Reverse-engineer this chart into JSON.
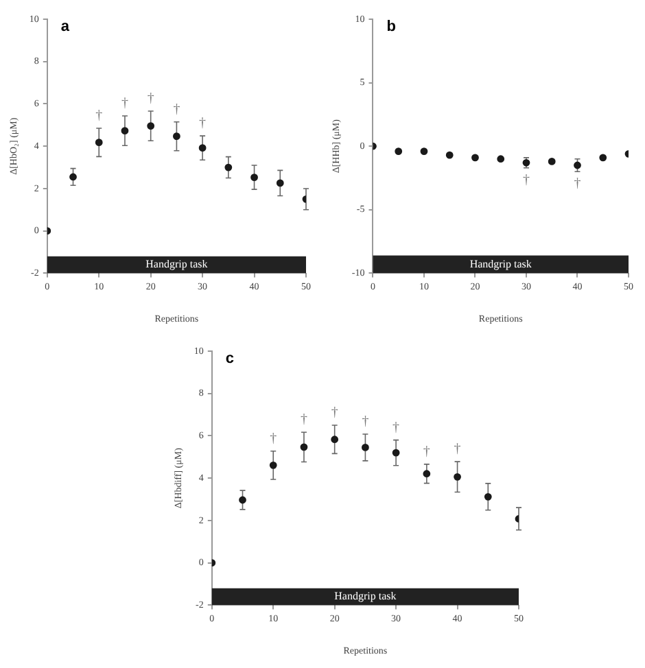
{
  "chart_data": [
    {
      "type": "scatter",
      "title": "a",
      "xlabel": "Repetitions",
      "ylabel": "Δ[HbO₂] (μM)",
      "x": [
        0,
        5,
        10,
        15,
        20,
        25,
        30,
        35,
        40,
        45,
        50
      ],
      "series": [
        {
          "color": "#1a1a1a",
          "values": [
            0,
            2.55,
            4.18,
            4.73,
            4.96,
            4.47,
            3.92,
            3.0,
            2.53,
            2.26,
            1.5
          ],
          "errors": [
            null,
            0.4,
            0.67,
            0.7,
            0.7,
            0.68,
            0.57,
            0.5,
            0.57,
            0.6,
            0.5
          ]
        }
      ],
      "xlim": [
        0,
        50
      ],
      "xticks": [
        0,
        10,
        20,
        30,
        40,
        50
      ],
      "ylim": [
        -2,
        10
      ],
      "yticks": [
        -2,
        0,
        2,
        4,
        6,
        8,
        10
      ],
      "grid": false,
      "legend": false,
      "marker": "circle",
      "bands": [
        {
          "axis": "y",
          "from": -2,
          "to": -1.2,
          "label": "Handgrip task",
          "color": "#222222"
        }
      ],
      "annotations": [
        {
          "text": "†",
          "x": 10,
          "y": 4.18
        },
        {
          "text": "†",
          "x": 15,
          "y": 4.73
        },
        {
          "text": "†",
          "x": 20,
          "y": 4.96
        },
        {
          "text": "†",
          "x": 25,
          "y": 4.47
        },
        {
          "text": "†",
          "x": 30,
          "y": 3.92
        }
      ]
    },
    {
      "type": "scatter",
      "title": "b",
      "xlabel": "Repetitions",
      "ylabel": "Δ[HHb] (μM)",
      "x": [
        0,
        5,
        10,
        15,
        20,
        25,
        30,
        35,
        40,
        45,
        50
      ],
      "series": [
        {
          "color": "#1a1a1a",
          "values": [
            0,
            -0.4,
            -0.4,
            -0.7,
            -0.9,
            -1.0,
            -1.3,
            -1.2,
            -1.5,
            -0.9,
            -0.6
          ],
          "errors": [
            null,
            null,
            null,
            null,
            null,
            null,
            0.4,
            null,
            0.5,
            null,
            null
          ]
        }
      ],
      "xlim": [
        0,
        50
      ],
      "xticks": [
        0,
        10,
        20,
        30,
        40,
        50
      ],
      "ylim": [
        -10,
        10
      ],
      "yticks": [
        -10,
        -5,
        0,
        5,
        10
      ],
      "grid": false,
      "legend": false,
      "marker": "circle",
      "bands": [
        {
          "axis": "y",
          "from": -10,
          "to": -8.6,
          "label": "Handgrip task",
          "color": "#222222"
        }
      ],
      "annotations": [
        {
          "text": "†",
          "x": 30,
          "y": -1.3
        },
        {
          "text": "†",
          "x": 40,
          "y": -1.5
        }
      ]
    },
    {
      "type": "scatter",
      "title": "c",
      "xlabel": "Repetitions",
      "ylabel": "Δ[Hbdiff] (μM)",
      "x": [
        0,
        5,
        10,
        15,
        20,
        25,
        30,
        35,
        40,
        45,
        50
      ],
      "series": [
        {
          "color": "#1a1a1a",
          "values": [
            0,
            2.97,
            4.61,
            5.47,
            5.83,
            5.45,
            5.2,
            4.21,
            4.06,
            3.12,
            2.08
          ],
          "errors": [
            null,
            0.45,
            0.67,
            0.7,
            0.67,
            0.63,
            0.6,
            0.45,
            0.72,
            0.63,
            0.53
          ]
        }
      ],
      "xlim": [
        0,
        50
      ],
      "xticks": [
        0,
        10,
        20,
        30,
        40,
        50
      ],
      "ylim": [
        -2,
        10
      ],
      "yticks": [
        -2,
        0,
        2,
        4,
        6,
        8,
        10
      ],
      "grid": false,
      "legend": false,
      "marker": "circle",
      "bands": [
        {
          "axis": "y",
          "from": -2,
          "to": -1.2,
          "label": "Handgrip task",
          "color": "#222222"
        }
      ],
      "annotations": [
        {
          "text": "†",
          "x": 10,
          "y": 4.61
        },
        {
          "text": "†",
          "x": 15,
          "y": 5.47
        },
        {
          "text": "†",
          "x": 20,
          "y": 5.83
        },
        {
          "text": "†",
          "x": 25,
          "y": 5.45
        },
        {
          "text": "†",
          "x": 30,
          "y": 5.2
        },
        {
          "text": "†",
          "x": 35,
          "y": 4.21
        },
        {
          "text": "†",
          "x": 40,
          "y": 4.06
        }
      ]
    }
  ]
}
